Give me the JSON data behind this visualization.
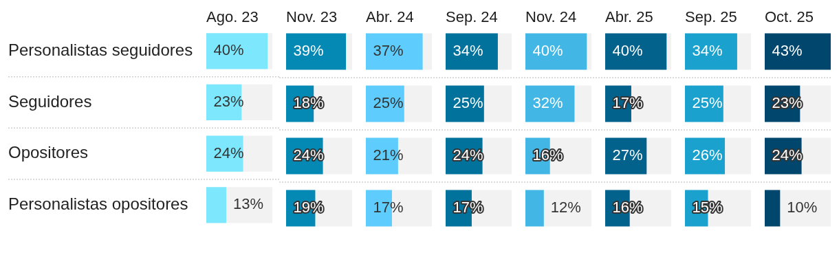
{
  "chart_data": [
    {
      "type": "bar",
      "orientation": "horizontal",
      "title": "Ago. 23",
      "categories": [
        "Personalistas seguidores",
        "Seguidores",
        "Opositores",
        "Personalistas opositores"
      ],
      "values": [
        40,
        23,
        24,
        13
      ],
      "value_labels": [
        "40%",
        "23%",
        "24%",
        "13%"
      ],
      "color": "#7de8fd",
      "xlim": [
        0,
        43
      ],
      "grid": "y",
      "tick_labels": "y"
    },
    {
      "type": "bar",
      "orientation": "horizontal",
      "title": "Nov. 23",
      "categories": [
        null,
        null,
        null,
        null
      ],
      "values": [
        39,
        18,
        24,
        19
      ],
      "value_labels": [
        "39%",
        "18%",
        "24%",
        "19%"
      ],
      "color": "#0489b5",
      "xlim": [
        0,
        43
      ],
      "grid": "y",
      "tick_labels": false
    },
    {
      "type": "bar",
      "orientation": "horizontal",
      "title": "Abr. 24",
      "categories": [
        null,
        null,
        null,
        null
      ],
      "values": [
        37,
        25,
        21,
        17
      ],
      "value_labels": [
        "37%",
        "25%",
        "21%",
        "17%"
      ],
      "color": "#5ecdfd",
      "xlim": [
        0,
        43
      ],
      "grid": "y",
      "tick_labels": false
    },
    {
      "type": "bar",
      "orientation": "horizontal",
      "title": "Sep. 24",
      "categories": [
        null,
        null,
        null,
        null
      ],
      "values": [
        34,
        25,
        24,
        17
      ],
      "value_labels": [
        "34%",
        "25%",
        "24%",
        "17%"
      ],
      "color": "#01729c",
      "xlim": [
        0,
        43
      ],
      "grid": "y",
      "tick_labels": false
    },
    {
      "type": "bar",
      "orientation": "horizontal",
      "title": "Nov. 24",
      "categories": [
        null,
        null,
        null,
        null
      ],
      "values": [
        40,
        32,
        16,
        12
      ],
      "value_labels": [
        "40%",
        "32%",
        "16%",
        "12%"
      ],
      "color": "#42b7e6",
      "xlim": [
        0,
        43
      ],
      "grid": "y",
      "tick_labels": false
    },
    {
      "type": "bar",
      "orientation": "horizontal",
      "title": "Abr. 25",
      "categories": [
        null,
        null,
        null,
        null
      ],
      "values": [
        40,
        17,
        27,
        16
      ],
      "value_labels": [
        "40%",
        "17%",
        "27%",
        "16%"
      ],
      "color": "#03628c",
      "xlim": [
        0,
        43
      ],
      "grid": "y",
      "tick_labels": false
    },
    {
      "type": "bar",
      "orientation": "horizontal",
      "title": "Sep. 25",
      "categories": [
        null,
        null,
        null,
        null
      ],
      "values": [
        34,
        25,
        26,
        15
      ],
      "value_labels": [
        "34%",
        "25%",
        "26%",
        "15%"
      ],
      "color": "#1aa1cd",
      "xlim": [
        0,
        43
      ],
      "grid": "y",
      "tick_labels": false
    },
    {
      "type": "bar",
      "orientation": "horizontal",
      "title": "Oct. 25",
      "categories": [
        null,
        null,
        null,
        null
      ],
      "values": [
        43,
        23,
        24,
        10
      ],
      "value_labels": [
        "43%",
        "23%",
        "24%",
        "10%"
      ],
      "color": "#01476d",
      "xlim": [
        0,
        43
      ],
      "grid": "y",
      "tick_labels": false
    }
  ]
}
